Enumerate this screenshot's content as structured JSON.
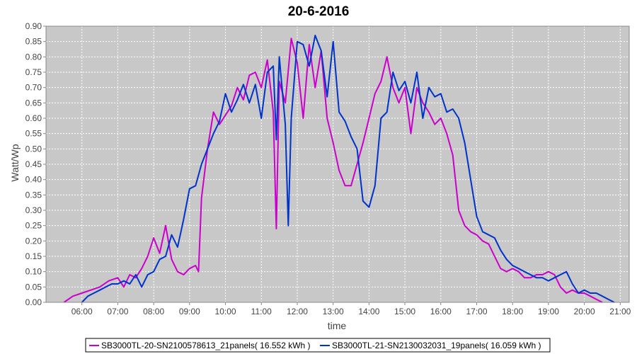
{
  "chart_data": {
    "type": "line",
    "title": "20-6-2016",
    "xlabel": "time",
    "ylabel": "Watt/Wp",
    "ylim": [
      0,
      0.9
    ],
    "xlim": [
      "05:00",
      "21:15"
    ],
    "grid": true,
    "legend_position": "bottom",
    "y_ticks": [
      "0.00",
      "0.05",
      "0.10",
      "0.15",
      "0.20",
      "0.25",
      "0.30",
      "0.35",
      "0.40",
      "0.45",
      "0.50",
      "0.55",
      "0.60",
      "0.65",
      "0.70",
      "0.75",
      "0.80",
      "0.85",
      "0.90"
    ],
    "x_ticks": [
      "06:00",
      "07:00",
      "08:00",
      "09:00",
      "10:00",
      "11:00",
      "12:00",
      "13:00",
      "14:00",
      "15:00",
      "16:00",
      "17:00",
      "18:00",
      "19:00",
      "20:00",
      "21:00"
    ],
    "colors": {
      "plot_bg": "#c8c8c8",
      "grid": "#ffffff"
    },
    "series": [
      {
        "name": "SB3000TL-20-SN2100578613_21panels( 16.552 kWh )",
        "color": "#cc00cc",
        "points": [
          [
            "05:30",
            0.0
          ],
          [
            "05:45",
            0.02
          ],
          [
            "06:00",
            0.03
          ],
          [
            "06:15",
            0.04
          ],
          [
            "06:30",
            0.05
          ],
          [
            "06:45",
            0.07
          ],
          [
            "07:00",
            0.08
          ],
          [
            "07:10",
            0.05
          ],
          [
            "07:20",
            0.09
          ],
          [
            "07:30",
            0.08
          ],
          [
            "07:40",
            0.11
          ],
          [
            "07:50",
            0.15
          ],
          [
            "08:00",
            0.21
          ],
          [
            "08:10",
            0.16
          ],
          [
            "08:20",
            0.25
          ],
          [
            "08:30",
            0.14
          ],
          [
            "08:40",
            0.1
          ],
          [
            "08:50",
            0.09
          ],
          [
            "09:00",
            0.11
          ],
          [
            "09:10",
            0.12
          ],
          [
            "09:15",
            0.1
          ],
          [
            "09:20",
            0.34
          ],
          [
            "09:30",
            0.5
          ],
          [
            "09:40",
            0.62
          ],
          [
            "09:50",
            0.58
          ],
          [
            "10:00",
            0.61
          ],
          [
            "10:10",
            0.64
          ],
          [
            "10:20",
            0.7
          ],
          [
            "10:30",
            0.66
          ],
          [
            "10:40",
            0.74
          ],
          [
            "10:50",
            0.75
          ],
          [
            "11:00",
            0.7
          ],
          [
            "11:10",
            0.79
          ],
          [
            "11:20",
            0.62
          ],
          [
            "11:25",
            0.24
          ],
          [
            "11:30",
            0.72
          ],
          [
            "11:40",
            0.65
          ],
          [
            "11:50",
            0.86
          ],
          [
            "12:00",
            0.78
          ],
          [
            "12:10",
            0.6
          ],
          [
            "12:20",
            0.84
          ],
          [
            "12:30",
            0.7
          ],
          [
            "12:40",
            0.82
          ],
          [
            "12:50",
            0.6
          ],
          [
            "13:00",
            0.52
          ],
          [
            "13:10",
            0.43
          ],
          [
            "13:20",
            0.38
          ],
          [
            "13:30",
            0.38
          ],
          [
            "13:40",
            0.45
          ],
          [
            "13:50",
            0.52
          ],
          [
            "14:00",
            0.6
          ],
          [
            "14:10",
            0.68
          ],
          [
            "14:20",
            0.72
          ],
          [
            "14:30",
            0.8
          ],
          [
            "14:40",
            0.7
          ],
          [
            "14:50",
            0.65
          ],
          [
            "15:00",
            0.7
          ],
          [
            "15:10",
            0.55
          ],
          [
            "15:20",
            0.7
          ],
          [
            "15:30",
            0.65
          ],
          [
            "15:40",
            0.62
          ],
          [
            "15:50",
            0.58
          ],
          [
            "16:00",
            0.6
          ],
          [
            "16:10",
            0.55
          ],
          [
            "16:20",
            0.48
          ],
          [
            "16:30",
            0.3
          ],
          [
            "16:40",
            0.25
          ],
          [
            "16:50",
            0.23
          ],
          [
            "17:00",
            0.22
          ],
          [
            "17:10",
            0.2
          ],
          [
            "17:20",
            0.19
          ],
          [
            "17:30",
            0.15
          ],
          [
            "17:40",
            0.11
          ],
          [
            "17:50",
            0.1
          ],
          [
            "18:00",
            0.11
          ],
          [
            "18:10",
            0.1
          ],
          [
            "18:20",
            0.08
          ],
          [
            "18:30",
            0.08
          ],
          [
            "18:40",
            0.09
          ],
          [
            "18:50",
            0.09
          ],
          [
            "19:00",
            0.1
          ],
          [
            "19:10",
            0.09
          ],
          [
            "19:20",
            0.05
          ],
          [
            "19:30",
            0.03
          ],
          [
            "19:40",
            0.04
          ],
          [
            "19:50",
            0.03
          ],
          [
            "20:00",
            0.03
          ],
          [
            "20:10",
            0.02
          ],
          [
            "20:20",
            0.01
          ],
          [
            "20:30",
            0.0
          ]
        ]
      },
      {
        "name": "SB3000TL-21-SN2130032031_19panels( 16.059 kWh )",
        "color": "#0033cc",
        "points": [
          [
            "06:00",
            0.0
          ],
          [
            "06:10",
            0.02
          ],
          [
            "06:20",
            0.03
          ],
          [
            "06:30",
            0.04
          ],
          [
            "06:40",
            0.05
          ],
          [
            "06:50",
            0.06
          ],
          [
            "07:00",
            0.06
          ],
          [
            "07:10",
            0.07
          ],
          [
            "07:20",
            0.06
          ],
          [
            "07:30",
            0.09
          ],
          [
            "07:40",
            0.05
          ],
          [
            "07:50",
            0.09
          ],
          [
            "08:00",
            0.1
          ],
          [
            "08:10",
            0.14
          ],
          [
            "08:20",
            0.15
          ],
          [
            "08:30",
            0.22
          ],
          [
            "08:40",
            0.18
          ],
          [
            "08:50",
            0.27
          ],
          [
            "09:00",
            0.37
          ],
          [
            "09:10",
            0.38
          ],
          [
            "09:20",
            0.45
          ],
          [
            "09:30",
            0.5
          ],
          [
            "09:40",
            0.55
          ],
          [
            "09:50",
            0.59
          ],
          [
            "10:00",
            0.68
          ],
          [
            "10:10",
            0.62
          ],
          [
            "10:20",
            0.66
          ],
          [
            "10:30",
            0.71
          ],
          [
            "10:40",
            0.65
          ],
          [
            "10:50",
            0.71
          ],
          [
            "11:00",
            0.6
          ],
          [
            "11:10",
            0.75
          ],
          [
            "11:20",
            0.77
          ],
          [
            "11:25",
            0.53
          ],
          [
            "11:30",
            0.8
          ],
          [
            "11:40",
            0.58
          ],
          [
            "11:45",
            0.25
          ],
          [
            "11:50",
            0.6
          ],
          [
            "12:00",
            0.85
          ],
          [
            "12:10",
            0.84
          ],
          [
            "12:20",
            0.77
          ],
          [
            "12:30",
            0.87
          ],
          [
            "12:40",
            0.82
          ],
          [
            "12:50",
            0.67
          ],
          [
            "13:00",
            0.85
          ],
          [
            "13:10",
            0.62
          ],
          [
            "13:20",
            0.59
          ],
          [
            "13:30",
            0.54
          ],
          [
            "13:40",
            0.5
          ],
          [
            "13:50",
            0.33
          ],
          [
            "14:00",
            0.31
          ],
          [
            "14:10",
            0.38
          ],
          [
            "14:20",
            0.6
          ],
          [
            "14:30",
            0.62
          ],
          [
            "14:40",
            0.75
          ],
          [
            "14:50",
            0.69
          ],
          [
            "15:00",
            0.72
          ],
          [
            "15:10",
            0.65
          ],
          [
            "15:20",
            0.75
          ],
          [
            "15:30",
            0.6
          ],
          [
            "15:40",
            0.7
          ],
          [
            "15:50",
            0.67
          ],
          [
            "16:00",
            0.68
          ],
          [
            "16:10",
            0.62
          ],
          [
            "16:20",
            0.63
          ],
          [
            "16:30",
            0.6
          ],
          [
            "16:40",
            0.52
          ],
          [
            "16:50",
            0.4
          ],
          [
            "17:00",
            0.28
          ],
          [
            "17:10",
            0.23
          ],
          [
            "17:20",
            0.22
          ],
          [
            "17:30",
            0.21
          ],
          [
            "17:40",
            0.17
          ],
          [
            "17:50",
            0.14
          ],
          [
            "18:00",
            0.12
          ],
          [
            "18:10",
            0.11
          ],
          [
            "18:20",
            0.1
          ],
          [
            "18:30",
            0.09
          ],
          [
            "18:40",
            0.08
          ],
          [
            "18:50",
            0.08
          ],
          [
            "19:00",
            0.07
          ],
          [
            "19:10",
            0.08
          ],
          [
            "19:20",
            0.09
          ],
          [
            "19:30",
            0.1
          ],
          [
            "19:40",
            0.06
          ],
          [
            "19:50",
            0.03
          ],
          [
            "20:00",
            0.04
          ],
          [
            "20:10",
            0.03
          ],
          [
            "20:20",
            0.03
          ],
          [
            "20:30",
            0.02
          ],
          [
            "20:40",
            0.01
          ],
          [
            "20:50",
            0.0
          ]
        ]
      }
    ]
  }
}
